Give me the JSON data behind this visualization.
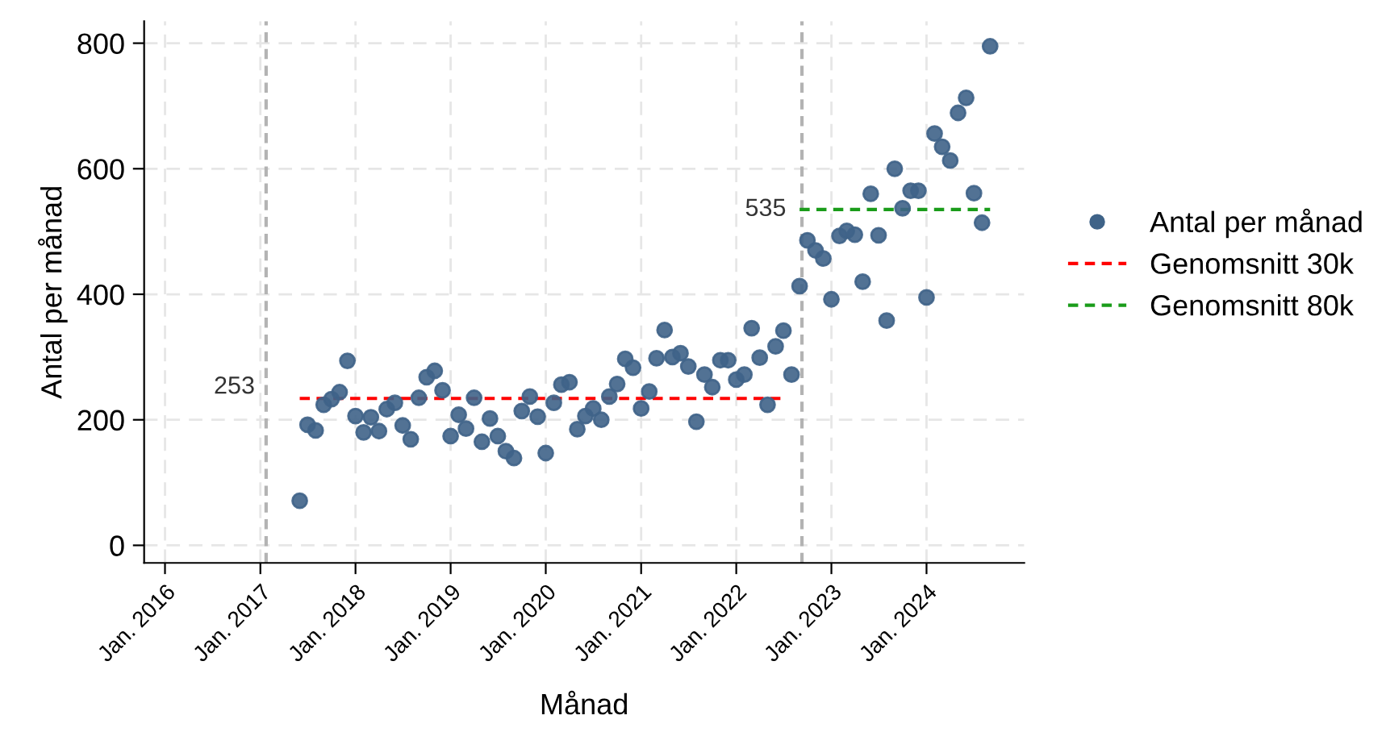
{
  "chart_data": {
    "type": "scatter",
    "xlabel": "Månad",
    "ylabel": "Antal per månad",
    "xlim": [
      "2015-10-13",
      "2025-01-10"
    ],
    "ylim": [
      -28,
      835
    ],
    "xticks": [
      {
        "value": "2016-01",
        "label": "Jan. 2016"
      },
      {
        "value": "2017-01",
        "label": "Jan. 2017"
      },
      {
        "value": "2018-01",
        "label": "Jan. 2018"
      },
      {
        "value": "2019-01",
        "label": "Jan. 2019"
      },
      {
        "value": "2020-01",
        "label": "Jan. 2020"
      },
      {
        "value": "2021-01",
        "label": "Jan. 2021"
      },
      {
        "value": "2022-01",
        "label": "Jan. 2022"
      },
      {
        "value": "2023-01",
        "label": "Jan. 2023"
      },
      {
        "value": "2024-01",
        "label": "Jan. 2024"
      }
    ],
    "yticks": [
      0,
      200,
      400,
      600,
      800
    ],
    "grid": true,
    "legend": "right",
    "series": [
      {
        "name": "Antal per månad",
        "marker": "circle",
        "color": "#3f6388",
        "x": [
          "2017-06",
          "2017-07",
          "2017-08",
          "2017-09",
          "2017-10",
          "2017-11",
          "2017-12",
          "2018-01",
          "2018-02",
          "2018-03",
          "2018-04",
          "2018-05",
          "2018-06",
          "2018-07",
          "2018-08",
          "2018-09",
          "2018-10",
          "2018-11",
          "2018-12",
          "2019-01",
          "2019-02",
          "2019-03",
          "2019-04",
          "2019-05",
          "2019-06",
          "2019-07",
          "2019-08",
          "2019-09",
          "2019-10",
          "2019-11",
          "2019-12",
          "2020-01",
          "2020-02",
          "2020-03",
          "2020-04",
          "2020-05",
          "2020-06",
          "2020-07",
          "2020-08",
          "2020-09",
          "2020-10",
          "2020-11",
          "2020-12",
          "2021-01",
          "2021-02",
          "2021-03",
          "2021-04",
          "2021-05",
          "2021-06",
          "2021-07",
          "2021-08",
          "2021-09",
          "2021-10",
          "2021-11",
          "2021-12",
          "2022-01",
          "2022-02",
          "2022-03",
          "2022-04",
          "2022-05",
          "2022-06",
          "2022-07",
          "2022-08",
          "2022-09",
          "2022-10",
          "2022-11",
          "2022-12",
          "2023-01",
          "2023-02",
          "2023-03",
          "2023-04",
          "2023-05",
          "2023-06",
          "2023-07",
          "2023-08",
          "2023-09",
          "2023-10",
          "2023-11",
          "2023-12",
          "2024-01",
          "2024-02",
          "2024-03",
          "2024-04",
          "2024-05",
          "2024-06",
          "2024-07",
          "2024-08",
          "2024-09"
        ],
        "values": [
          71,
          192,
          183,
          224,
          233,
          244,
          294,
          206,
          180,
          204,
          182,
          217,
          227,
          191,
          169,
          235,
          268,
          278,
          247,
          174,
          208,
          186,
          235,
          165,
          202,
          174,
          150,
          139,
          214,
          237,
          205,
          147,
          227,
          256,
          260,
          185,
          206,
          218,
          200,
          237,
          257,
          297,
          283,
          218,
          245,
          298,
          343,
          300,
          306,
          285,
          197,
          272,
          252,
          295,
          295,
          264,
          272,
          346,
          299,
          224,
          317,
          342,
          272,
          413,
          486,
          470,
          457,
          392,
          493,
          501,
          495,
          420,
          560,
          494,
          358,
          600,
          537,
          565,
          565,
          395,
          656,
          635,
          613,
          689,
          713,
          561,
          514,
          795
        ]
      },
      {
        "name": "Genomsnitt 30k",
        "type": "line",
        "line_style": "dashed",
        "color": "#ff0000",
        "x": [
          "2017-06",
          "2022-07"
        ],
        "values": [
          234,
          234
        ]
      },
      {
        "name": "Genomsnitt 80k",
        "type": "line",
        "line_style": "dashed",
        "color": "#1a9c1a",
        "x": [
          "2022-09",
          "2024-09"
        ],
        "values": [
          535,
          535
        ]
      }
    ],
    "ref_lines": [
      {
        "axis": "x",
        "value": "2017-01-23",
        "color": "#b3b3b3",
        "line_style": "dashed"
      },
      {
        "axis": "x",
        "value": "2022-09-10",
        "color": "#b3b3b3",
        "line_style": "dashed"
      }
    ],
    "annotations": [
      "253",
      "535"
    ]
  }
}
